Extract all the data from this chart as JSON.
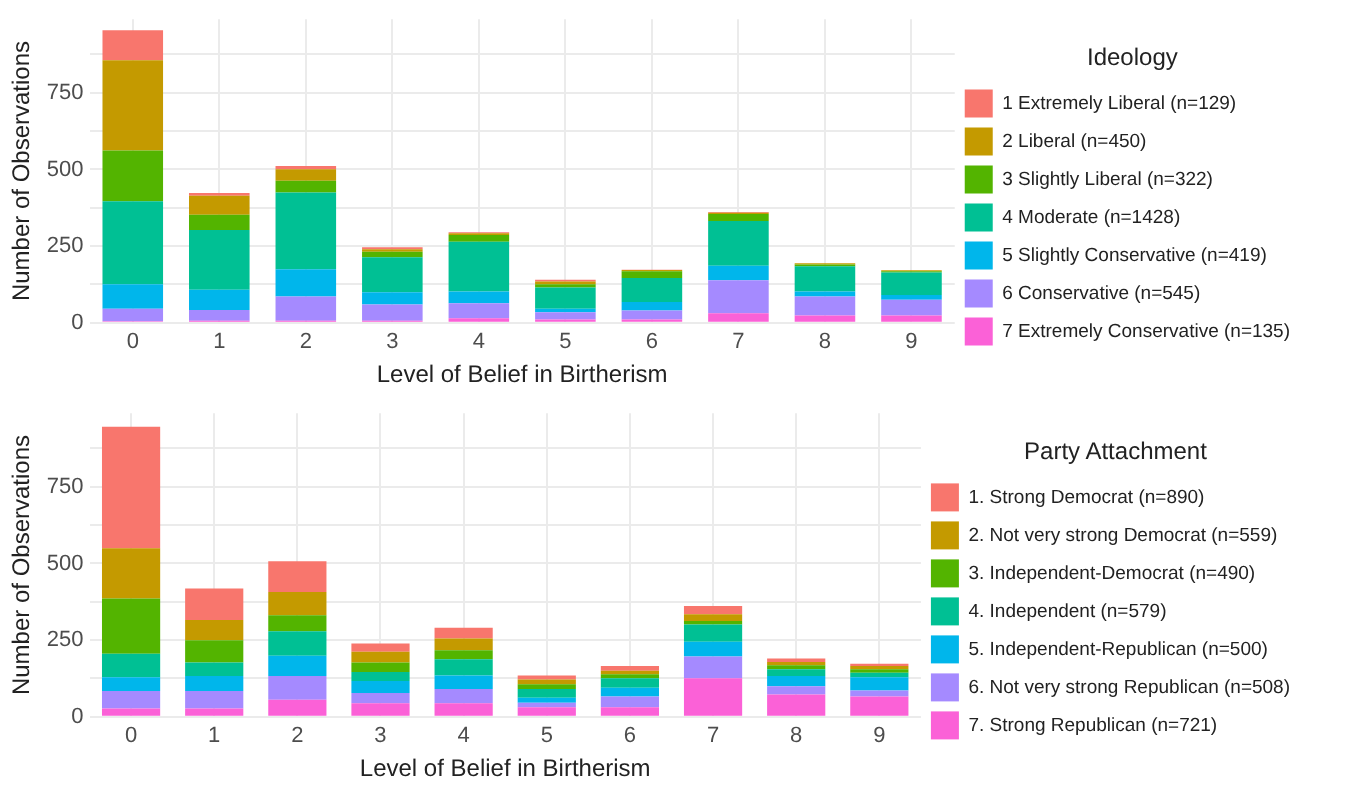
{
  "chart_data": [
    {
      "type": "bar",
      "stacked": true,
      "legend_title": "Ideology",
      "legend": "right",
      "grid": true,
      "xlabel": "Level of Belief in Birtherism",
      "ylabel": "Number of Observations",
      "categories": [
        "0",
        "1",
        "2",
        "3",
        "4",
        "5",
        "6",
        "7",
        "8",
        "9"
      ],
      "ylim": [
        0,
        990
      ],
      "yticks": [
        0,
        {
          "value": 125,
          "label": null
        },
        250,
        {
          "value": 375,
          "label": null
        },
        500,
        {
          "value": 625,
          "label": null
        },
        750,
        {
          "value": 875,
          "label": null
        }
      ],
      "series": [
        {
          "name": "7 Extremely Conservative (n=135)",
          "color": "#fb61d7",
          "values": [
            5,
            7,
            7,
            7,
            15,
            11,
            11,
            31,
            24,
            24
          ]
        },
        {
          "name": "6 Conservative (n=545)",
          "color": "#a58aff",
          "values": [
            41,
            35,
            79,
            53,
            49,
            23,
            29,
            108,
            62,
            51
          ]
        },
        {
          "name": "5 Slightly Conservative (n=419)",
          "color": "#00b6eb",
          "values": [
            80,
            66,
            89,
            40,
            38,
            12,
            28,
            47,
            16,
            16
          ]
        },
        {
          "name": "4 Moderate (n=1428)",
          "color": "#00c094",
          "values": [
            270,
            195,
            250,
            114,
            162,
            69,
            78,
            146,
            82,
            73
          ]
        },
        {
          "name": "3 Slightly Liberal (n=322)",
          "color": "#53b400",
          "values": [
            166,
            49,
            38,
            18,
            22,
            11,
            22,
            23,
            6,
            4
          ]
        },
        {
          "name": "2 Liberal (n=450)",
          "color": "#c49a00",
          "values": [
            294,
            62,
            38,
            8,
            6,
            9,
            4,
            4,
            4,
            3
          ]
        },
        {
          "name": "1 Extremely Liberal (n=129)",
          "color": "#f8766d",
          "values": [
            98,
            9,
            10,
            6,
            3,
            5,
            1,
            2,
            null,
            null
          ]
        }
      ]
    },
    {
      "type": "bar",
      "stacked": true,
      "legend_title": "Party Attachment",
      "legend": "right",
      "grid": true,
      "xlabel": "Level of Belief in Birtherism",
      "ylabel": "Number of Observations",
      "categories": [
        "0",
        "1",
        "2",
        "3",
        "4",
        "5",
        "6",
        "7",
        "8",
        "9"
      ],
      "ylim": [
        0,
        990
      ],
      "yticks": [
        0,
        {
          "value": 125,
          "label": null
        },
        250,
        {
          "value": 375,
          "label": null
        },
        500,
        {
          "value": 625,
          "label": null
        },
        750,
        {
          "value": 875,
          "label": null
        }
      ],
      "series": [
        {
          "name": "7. Strong Republican (n=721)",
          "color": "#fb61d7",
          "values": [
            27,
            27,
            56,
            44,
            44,
            31,
            31,
            126,
            73,
            66
          ]
        },
        {
          "name": "6. Not very strong Republican (n=508)",
          "color": "#a58aff",
          "values": [
            57,
            57,
            77,
            34,
            47,
            15,
            35,
            71,
            27,
            20
          ]
        },
        {
          "name": "5. Independent-Republican (n=500)",
          "color": "#00b6eb",
          "values": [
            45,
            49,
            66,
            39,
            44,
            16,
            29,
            48,
            33,
            43
          ]
        },
        {
          "name": "4. Independent (n=579)",
          "color": "#00c094",
          "values": [
            77,
            44,
            80,
            29,
            53,
            29,
            31,
            56,
            22,
            15
          ]
        },
        {
          "name": "3. Independent-Democrat (n=490)",
          "color": "#53b400",
          "values": [
            180,
            73,
            52,
            31,
            29,
            15,
            13,
            11,
            13,
            11
          ]
        },
        {
          "name": "2. Not very strong Democrat (n=559)",
          "color": "#c49a00",
          "values": [
            164,
            66,
            76,
            35,
            38,
            16,
            11,
            22,
            11,
            11
          ]
        },
        {
          "name": "1. Strong Democrat (n=890)",
          "color": "#f8766d",
          "values": [
            396,
            102,
            100,
            27,
            35,
            13,
            16,
            27,
            11,
            7
          ]
        }
      ]
    }
  ]
}
